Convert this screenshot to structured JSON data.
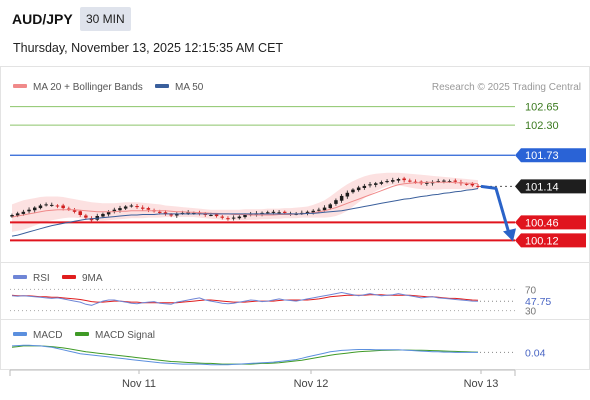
{
  "header": {
    "symbol": "AUD/JPY",
    "timeframe": "30 MIN",
    "datetime": "Thursday, November 13, 2025 12:15:35 AM CET"
  },
  "colors": {
    "ma20": "#f08a8a",
    "bollinger_fill": "#fbd9d9",
    "ma50": "#3a5f9c",
    "resistance": "#8cc46a",
    "pivot": "#2a63d6",
    "support": "#e0141e",
    "rsi": "#6f86d6",
    "rsi_9ma": "#e01e1e",
    "macd": "#5b8fde",
    "macd_signal": "#3f9a26",
    "candle_up": "#1f1f1f",
    "candle_down": "#d01e1e"
  },
  "chart_data": [
    {
      "type": "line",
      "panel": "price",
      "legend": [
        "MA 20 + Bollinger Bands",
        "MA 50"
      ],
      "legend_placement": "top-left",
      "credit": "Research © 2025 Trading Central",
      "x_ticks": [
        "Nov 11",
        "Nov 12",
        "Nov 13"
      ],
      "ylim": [
        99.9,
        102.85
      ],
      "levels": [
        {
          "value": "102.65",
          "kind": "resistance"
        },
        {
          "value": "102.30",
          "kind": "resistance"
        },
        {
          "value": "101.73",
          "kind": "pivot"
        },
        {
          "value": "101.14",
          "kind": "last"
        },
        {
          "value": "100.46",
          "kind": "support"
        },
        {
          "value": "100.12",
          "kind": "support"
        }
      ],
      "close": [
        100.6,
        100.63,
        100.66,
        100.7,
        100.74,
        100.78,
        100.8,
        100.79,
        100.77,
        100.73,
        100.7,
        100.66,
        100.6,
        100.55,
        100.5,
        100.58,
        100.62,
        100.66,
        100.7,
        100.73,
        100.76,
        100.78,
        100.75,
        100.72,
        100.7,
        100.67,
        100.64,
        100.62,
        100.6,
        100.62,
        100.64,
        100.65,
        100.64,
        100.63,
        100.61,
        100.6,
        100.58,
        100.55,
        100.53,
        100.55,
        100.57,
        100.6,
        100.62,
        100.63,
        100.64,
        100.65,
        100.66,
        100.65,
        100.64,
        100.63,
        100.62,
        100.64,
        100.66,
        100.68,
        100.7,
        100.74,
        100.8,
        100.88,
        100.96,
        101.02,
        101.08,
        101.12,
        101.15,
        101.18,
        101.2,
        101.22,
        101.24,
        101.26,
        101.28,
        101.26,
        101.24,
        101.22,
        101.2,
        101.21,
        101.22,
        101.24,
        101.25,
        101.24,
        101.23,
        101.2,
        101.18,
        101.16,
        101.14
      ],
      "ma20": [
        100.56,
        100.58,
        100.6,
        100.62,
        100.64,
        100.66,
        100.68,
        100.69,
        100.7,
        100.7,
        100.7,
        100.7,
        100.69,
        100.68,
        100.67,
        100.66,
        100.66,
        100.66,
        100.66,
        100.67,
        100.67,
        100.68,
        100.68,
        100.68,
        100.68,
        100.68,
        100.68,
        100.68,
        100.67,
        100.66,
        100.66,
        100.65,
        100.65,
        100.64,
        100.64,
        100.63,
        100.63,
        100.62,
        100.62,
        100.61,
        100.61,
        100.61,
        100.6,
        100.6,
        100.6,
        100.6,
        100.6,
        100.61,
        100.61,
        100.61,
        100.62,
        100.62,
        100.63,
        100.64,
        100.66,
        100.68,
        100.71,
        100.74,
        100.78,
        100.82,
        100.86,
        100.9,
        100.94,
        100.98,
        101.02,
        101.06,
        101.1,
        101.14,
        101.17,
        101.19,
        101.2,
        101.21,
        101.21,
        101.22,
        101.22,
        101.22,
        101.22,
        101.22,
        101.21,
        101.21,
        101.2,
        101.2,
        101.19
      ],
      "bb_upper": [
        100.8,
        100.84,
        100.88,
        100.9,
        100.92,
        100.94,
        100.95,
        100.95,
        100.95,
        100.94,
        100.92,
        100.9,
        100.88,
        100.86,
        100.84,
        100.83,
        100.82,
        100.82,
        100.82,
        100.83,
        100.84,
        100.84,
        100.84,
        100.83,
        100.82,
        100.81,
        100.8,
        100.78,
        100.77,
        100.76,
        100.75,
        100.74,
        100.73,
        100.72,
        100.71,
        100.7,
        100.7,
        100.7,
        100.7,
        100.7,
        100.7,
        100.71,
        100.71,
        100.71,
        100.71,
        100.72,
        100.72,
        100.72,
        100.73,
        100.73,
        100.74,
        100.75,
        100.76,
        100.79,
        100.83,
        100.88,
        100.95,
        101.03,
        101.11,
        101.18,
        101.24,
        101.29,
        101.33,
        101.36,
        101.38,
        101.39,
        101.4,
        101.4,
        101.4,
        101.39,
        101.38,
        101.37,
        101.36,
        101.35,
        101.34,
        101.33,
        101.32,
        101.31,
        101.3,
        101.29,
        101.28,
        101.27,
        101.26
      ],
      "bb_lower": [
        100.28,
        100.3,
        100.32,
        100.36,
        100.4,
        100.44,
        100.47,
        100.5,
        100.52,
        100.54,
        100.55,
        100.55,
        100.54,
        100.52,
        100.5,
        100.49,
        100.49,
        100.5,
        100.51,
        100.52,
        100.53,
        100.54,
        100.54,
        100.54,
        100.55,
        100.55,
        100.55,
        100.56,
        100.56,
        100.56,
        100.56,
        100.56,
        100.56,
        100.55,
        100.54,
        100.53,
        100.52,
        100.51,
        100.5,
        100.5,
        100.5,
        100.5,
        100.51,
        100.51,
        100.52,
        100.52,
        100.53,
        100.53,
        100.54,
        100.54,
        100.54,
        100.55,
        100.55,
        100.55,
        100.55,
        100.55,
        100.56,
        100.58,
        100.62,
        100.68,
        100.76,
        100.84,
        100.92,
        100.99,
        101.05,
        101.1,
        101.14,
        101.17,
        101.16,
        101.14,
        101.12,
        101.1,
        101.09,
        101.08,
        101.08,
        101.08,
        101.09,
        101.09,
        101.09,
        101.09,
        101.09,
        101.09,
        101.08
      ],
      "ma50": [
        100.2,
        100.22,
        100.25,
        100.28,
        100.31,
        100.34,
        100.37,
        100.4,
        100.42,
        100.44,
        100.46,
        100.48,
        100.5,
        100.52,
        100.53,
        100.54,
        100.55,
        100.56,
        100.57,
        100.58,
        100.59,
        100.6,
        100.6,
        100.61,
        100.61,
        100.61,
        100.62,
        100.62,
        100.62,
        100.62,
        100.62,
        100.62,
        100.62,
        100.62,
        100.62,
        100.62,
        100.62,
        100.62,
        100.62,
        100.62,
        100.62,
        100.62,
        100.62,
        100.62,
        100.62,
        100.62,
        100.62,
        100.62,
        100.62,
        100.62,
        100.62,
        100.62,
        100.63,
        100.63,
        100.64,
        100.65,
        100.66,
        100.67,
        100.68,
        100.7,
        100.72,
        100.74,
        100.76,
        100.78,
        100.8,
        100.82,
        100.84,
        100.86,
        100.88,
        100.9,
        100.91,
        100.93,
        100.95,
        100.96,
        100.98,
        100.99,
        101.01,
        101.02,
        101.04,
        101.05,
        101.07,
        101.08,
        101.1
      ],
      "projection": {
        "from": 101.14,
        "to": 100.12
      }
    },
    {
      "type": "line",
      "panel": "rsi",
      "legend": [
        "RSI",
        "9MA"
      ],
      "ticks": [
        "70",
        "30"
      ],
      "last_value": "47.75",
      "ylim": [
        20,
        80
      ],
      "rsi": [
        58,
        57,
        58,
        57,
        56,
        55,
        54,
        53,
        54,
        52,
        50,
        48,
        46,
        42,
        40,
        44,
        48,
        50,
        50,
        48,
        46,
        44,
        43,
        45,
        46,
        47,
        44,
        43,
        42,
        46,
        48,
        50,
        52,
        54,
        50,
        48,
        46,
        44,
        43,
        44,
        46,
        48,
        50,
        49,
        47,
        48,
        50,
        52,
        50,
        49,
        48,
        50,
        52,
        54,
        56,
        58,
        60,
        62,
        64,
        62,
        60,
        58,
        60,
        62,
        60,
        58,
        59,
        60,
        62,
        60,
        58,
        56,
        54,
        55,
        56,
        54,
        53,
        52,
        51,
        50,
        49,
        48,
        47.75
      ],
      "rsi_9ma": [
        59,
        58,
        58,
        58,
        57,
        56,
        56,
        55,
        55,
        54,
        53,
        52,
        51,
        49,
        47,
        46,
        46,
        47,
        48,
        48,
        47,
        46,
        46,
        45,
        45,
        45,
        45,
        45,
        45,
        45,
        46,
        47,
        48,
        49,
        50,
        50,
        49,
        48,
        47,
        46,
        46,
        46,
        47,
        48,
        48,
        48,
        48,
        49,
        50,
        50,
        50,
        50,
        50,
        51,
        52,
        54,
        56,
        57,
        58,
        59,
        59,
        59,
        59,
        60,
        60,
        60,
        59,
        59,
        59,
        59,
        59,
        58,
        57,
        56,
        56,
        55,
        54,
        53,
        53,
        52,
        51,
        50,
        49.6
      ]
    },
    {
      "type": "line",
      "panel": "macd",
      "legend": [
        "MACD",
        "MACD Signal"
      ],
      "last_value": "0.04",
      "ylim": [
        -0.2,
        0.2
      ],
      "macd": [
        0.14,
        0.145,
        0.15,
        0.15,
        0.145,
        0.14,
        0.13,
        0.12,
        0.1,
        0.08,
        0.06,
        0.04,
        0.02,
        0.01,
        0.0,
        -0.01,
        -0.02,
        -0.03,
        -0.04,
        -0.05,
        -0.06,
        -0.07,
        -0.08,
        -0.09,
        -0.1,
        -0.11,
        -0.12,
        -0.125,
        -0.13,
        -0.135,
        -0.14,
        -0.14,
        -0.14,
        -0.14,
        -0.145,
        -0.15,
        -0.15,
        -0.15,
        -0.15,
        -0.145,
        -0.14,
        -0.135,
        -0.13,
        -0.125,
        -0.12,
        -0.115,
        -0.11,
        -0.1,
        -0.09,
        -0.08,
        -0.07,
        -0.05,
        -0.03,
        -0.01,
        0.01,
        0.03,
        0.05,
        0.06,
        0.07,
        0.075,
        0.08,
        0.085,
        0.085,
        0.085,
        0.08,
        0.08,
        0.08,
        0.08,
        0.08,
        0.075,
        0.07,
        0.065,
        0.06,
        0.055,
        0.05,
        0.05,
        0.045,
        0.045,
        0.04,
        0.04,
        0.04,
        0.04,
        0.04
      ],
      "macd_signal": [
        0.12,
        0.13,
        0.14,
        0.14,
        0.14,
        0.14,
        0.135,
        0.13,
        0.12,
        0.11,
        0.095,
        0.08,
        0.065,
        0.05,
        0.04,
        0.03,
        0.02,
        0.01,
        0.0,
        -0.01,
        -0.02,
        -0.03,
        -0.04,
        -0.05,
        -0.06,
        -0.07,
        -0.08,
        -0.09,
        -0.1,
        -0.105,
        -0.11,
        -0.115,
        -0.12,
        -0.125,
        -0.13,
        -0.13,
        -0.135,
        -0.14,
        -0.14,
        -0.14,
        -0.14,
        -0.14,
        -0.14,
        -0.135,
        -0.13,
        -0.13,
        -0.125,
        -0.12,
        -0.11,
        -0.1,
        -0.09,
        -0.08,
        -0.065,
        -0.05,
        -0.035,
        -0.02,
        -0.005,
        0.01,
        0.02,
        0.03,
        0.04,
        0.05,
        0.055,
        0.06,
        0.065,
        0.07,
        0.072,
        0.075,
        0.077,
        0.077,
        0.076,
        0.074,
        0.072,
        0.07,
        0.067,
        0.064,
        0.061,
        0.058,
        0.055,
        0.052,
        0.049,
        0.046,
        0.044
      ]
    }
  ]
}
